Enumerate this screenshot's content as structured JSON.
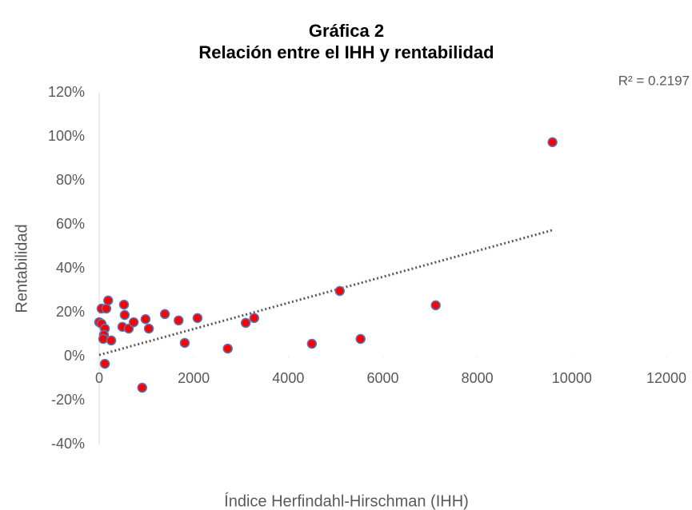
{
  "chart_data": {
    "type": "scatter",
    "title": [
      "Gráfica 2",
      "Relación entre el IHH y rentabilidad"
    ],
    "xlabel": "Índice Herfindahl-Hirschman (IHH)",
    "ylabel": "Rentabilidad",
    "color": "#ff0000",
    "edge_color": "#4f7bc0",
    "x": [
      0,
      50,
      50,
      150,
      190,
      120,
      100,
      85,
      255,
      120,
      490,
      525,
      540,
      625,
      730,
      980,
      1050,
      910,
      1390,
      1680,
      1810,
      2080,
      2720,
      3100,
      3280,
      4500,
      5090,
      5530,
      7120,
      9590
    ],
    "values": [
      15.6,
      14.9,
      21.8,
      21.8,
      25.5,
      12.7,
      9.8,
      8,
      7.3,
      -3.3,
      13.5,
      23.6,
      18.9,
      12.7,
      15.6,
      17,
      12.7,
      -14.2,
      19.3,
      16.4,
      6.2,
      17.5,
      3.6,
      15.3,
      17.5,
      5.8,
      29.8,
      8,
      23.3,
      97.5
    ],
    "trendline": {
      "x": [
        0,
        9590
      ],
      "y": [
        0.7,
        57.5
      ],
      "annotation": "R² = 0.2197"
    },
    "xlim": [
      0,
      12000
    ],
    "xticks": [
      0,
      2000,
      4000,
      6000,
      8000,
      10000,
      12000
    ],
    "ylim": [
      -40,
      120
    ],
    "yticks": [
      {
        "value": -40,
        "label": "-40%"
      },
      {
        "value": -20,
        "label": "-20%"
      },
      {
        "value": 0,
        "label": "0%"
      },
      {
        "value": 20,
        "label": "20%"
      },
      {
        "value": 40,
        "label": "40%"
      },
      {
        "value": 60,
        "label": "60%"
      },
      {
        "value": 80,
        "label": "80%"
      },
      {
        "value": 100,
        "label": "100%"
      },
      {
        "value": 120,
        "label": "120%"
      }
    ],
    "grid": false
  }
}
